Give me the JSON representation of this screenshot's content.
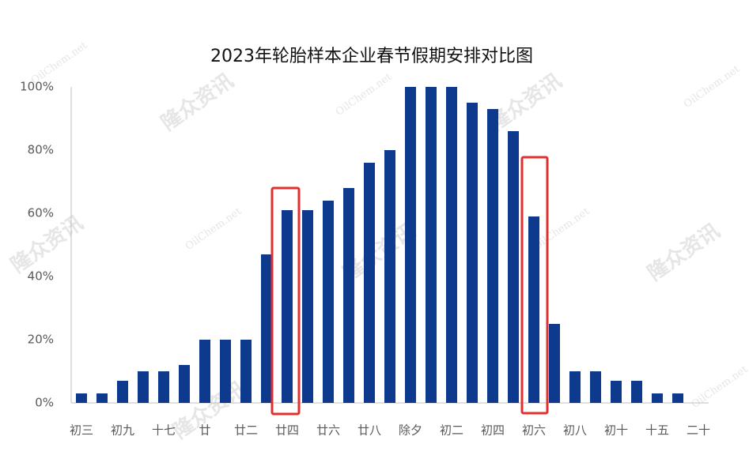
{
  "chart_data": {
    "type": "bar",
    "title": "2023年轮胎样本企业春节假期安排对比图",
    "categories": [
      "初三",
      null,
      "初九",
      null,
      "十七",
      null,
      "廿",
      null,
      "廿二",
      null,
      "廿四",
      null,
      "廿六",
      null,
      "廿八",
      null,
      "除夕",
      null,
      "初二",
      null,
      "初四",
      null,
      "初六",
      null,
      "初八",
      null,
      "初十",
      null,
      "十五",
      null,
      "二十"
    ],
    "values": [
      3,
      3,
      7,
      10,
      10,
      12,
      20,
      20,
      20,
      47,
      61,
      61,
      64,
      68,
      76,
      80,
      100,
      100,
      100,
      95,
      93,
      86,
      59,
      25,
      10,
      10,
      7,
      7,
      3,
      3,
      0
    ],
    "color": "#0d3a8c",
    "ylim": [
      0,
      100
    ],
    "yticks": [
      {
        "value": 0,
        "label": "0%"
      },
      {
        "value": 20,
        "label": "20%"
      },
      {
        "value": 40,
        "label": "40%"
      },
      {
        "value": 60,
        "label": "60%"
      },
      {
        "value": 80,
        "label": "80%"
      },
      {
        "value": 100,
        "label": "100%"
      }
    ],
    "grid": false,
    "watermarks": [
      "隆众资讯",
      "OilChem.net"
    ]
  }
}
